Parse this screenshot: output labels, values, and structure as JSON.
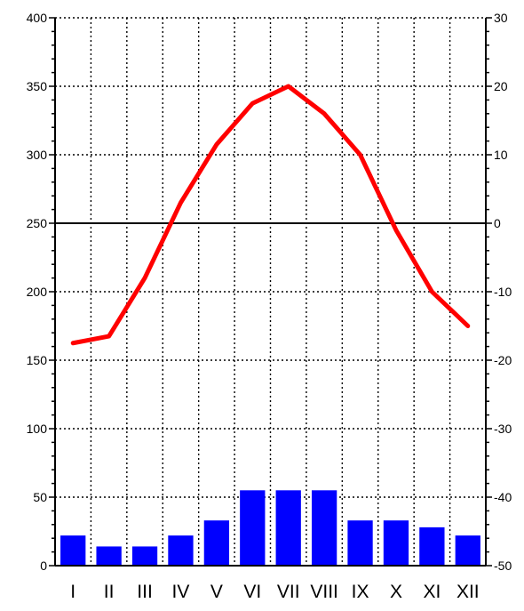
{
  "chart_data": {
    "type": "bar+line",
    "title": "",
    "categories": [
      "I",
      "II",
      "III",
      "IV",
      "V",
      "VI",
      "VII",
      "VIII",
      "IX",
      "X",
      "XI",
      "XII"
    ],
    "bars": {
      "axis": "left",
      "color": "#0000ff",
      "values": [
        22,
        14,
        14,
        22,
        33,
        55,
        55,
        55,
        33,
        33,
        28,
        22
      ]
    },
    "line": {
      "axis": "right",
      "color": "#ff0000",
      "values": [
        -17.5,
        -16.5,
        -8,
        3,
        11.5,
        17.5,
        20,
        16,
        10,
        -1,
        -10,
        -15
      ]
    },
    "y_left": {
      "min": 0,
      "max": 400,
      "ticks": [
        0,
        50,
        100,
        150,
        200,
        250,
        300,
        350,
        400
      ],
      "labels": [
        "0",
        "50",
        "100",
        "150",
        "200",
        "250",
        "300",
        "350",
        "400"
      ]
    },
    "y_right": {
      "min": -50,
      "max": 30,
      "ticks": [
        -50,
        -40,
        -30,
        -20,
        -10,
        0,
        10,
        20,
        30
      ],
      "labels": [
        "-50",
        "-40",
        "-30",
        "-20",
        "-10",
        "0",
        "10",
        "20",
        "30"
      ]
    },
    "grid": true,
    "zero_line": 0
  }
}
